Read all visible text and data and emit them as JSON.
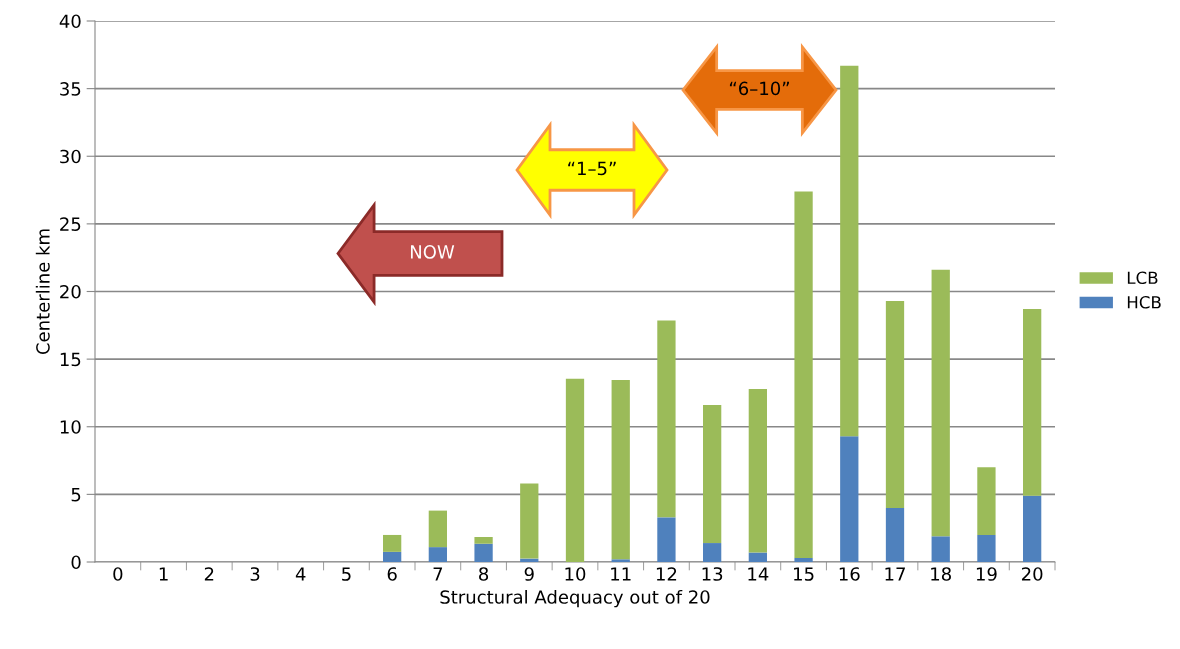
{
  "chart_data": {
    "type": "bar",
    "stacked": true,
    "xlabel": "Structural Adequacy out of 20",
    "ylabel": "Centerline km",
    "categories": [
      "0",
      "1",
      "2",
      "3",
      "4",
      "5",
      "6",
      "7",
      "8",
      "9",
      "10",
      "11",
      "12",
      "13",
      "14",
      "15",
      "16",
      "17",
      "18",
      "19",
      "20"
    ],
    "series": [
      {
        "name": "HCB",
        "color": "#4f81bd",
        "values": [
          0,
          0,
          0,
          0,
          0,
          0,
          0.75,
          1.1,
          1.35,
          0.25,
          null,
          0.2,
          3.3,
          1.4,
          0.7,
          0.3,
          9.3,
          4.0,
          1.9,
          2.0,
          4.9
        ]
      },
      {
        "name": "LCB",
        "color": "#9bbb59",
        "values": [
          0,
          0,
          0,
          0,
          0,
          0,
          1.25,
          2.7,
          0.5,
          5.55,
          13.55,
          13.25,
          14.55,
          10.2,
          12.1,
          27.1,
          27.4,
          15.3,
          19.7,
          5.0,
          13.8
        ]
      }
    ],
    "ylim": [
      0,
      40
    ],
    "yticks": [
      0,
      5,
      10,
      15,
      20,
      25,
      30,
      35,
      40
    ],
    "grid": "y",
    "legend": "right",
    "annotations": [
      "NOW",
      "“1–5”",
      "“6–10”"
    ]
  }
}
